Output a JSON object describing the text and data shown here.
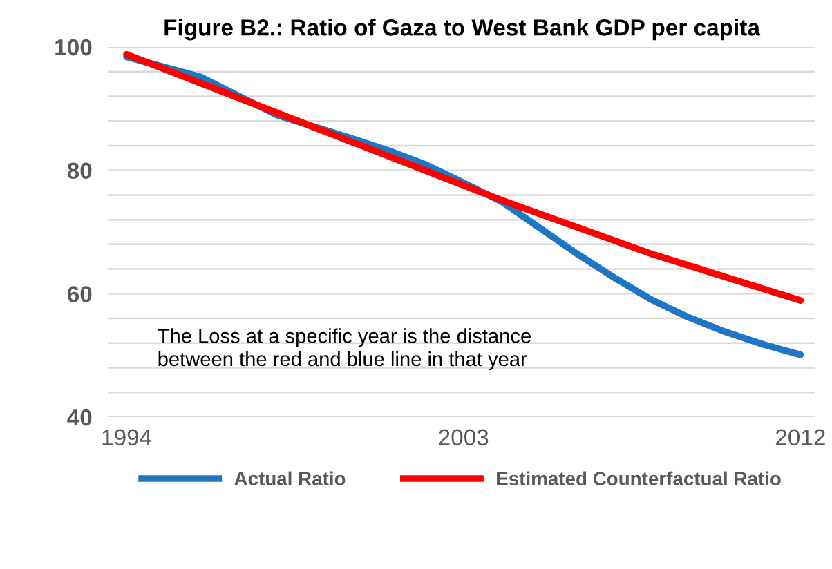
{
  "chart_data": {
    "type": "line",
    "title": "Figure B2.: Ratio of Gaza to West Bank GDP per capita",
    "series": [
      {
        "name": "Actual Ratio",
        "color": "#1f77c4",
        "x": [
          1994,
          1996,
          1998,
          2000,
          2001,
          2002,
          2003,
          2004,
          2005,
          2006,
          2007,
          2008,
          2009,
          2010,
          2011,
          2012
        ],
        "values": [
          98.4,
          95.1,
          89.0,
          85.2,
          83.2,
          80.9,
          78.0,
          75.0,
          70.8,
          66.6,
          62.7,
          59.1,
          56.2,
          53.8,
          51.8,
          50.1
        ]
      },
      {
        "name": "Estimated Counterfactual Ratio",
        "color": "#ff0000",
        "x": [
          1994,
          1999,
          2004,
          2008,
          2012
        ],
        "values": [
          98.8,
          87.0,
          75.2,
          66.5,
          58.9
        ]
      }
    ],
    "xlim": [
      1993.5,
      2012.4
    ],
    "xticks": [
      1994,
      2003,
      2012
    ],
    "ylim": [
      40,
      100
    ],
    "yticks": [
      40,
      {
        "value": 44,
        "label": null
      },
      {
        "value": 48,
        "label": null
      },
      {
        "value": 52,
        "label": null
      },
      {
        "value": 56,
        "label": null
      },
      60,
      {
        "value": 64,
        "label": null
      },
      {
        "value": 68,
        "label": null
      },
      {
        "value": 72,
        "label": null
      },
      {
        "value": 76,
        "label": null
      },
      80,
      {
        "value": 84,
        "label": null
      },
      {
        "value": 88,
        "label": null
      },
      {
        "value": 92,
        "label": null
      },
      {
        "value": 96,
        "label": null
      },
      100
    ],
    "grid": "y",
    "legend": "bottom",
    "marker": "none",
    "line_style": "solid",
    "annotations": [
      "The Loss at a specific year is the distance\nbetween the red and blue line in that year"
    ]
  }
}
